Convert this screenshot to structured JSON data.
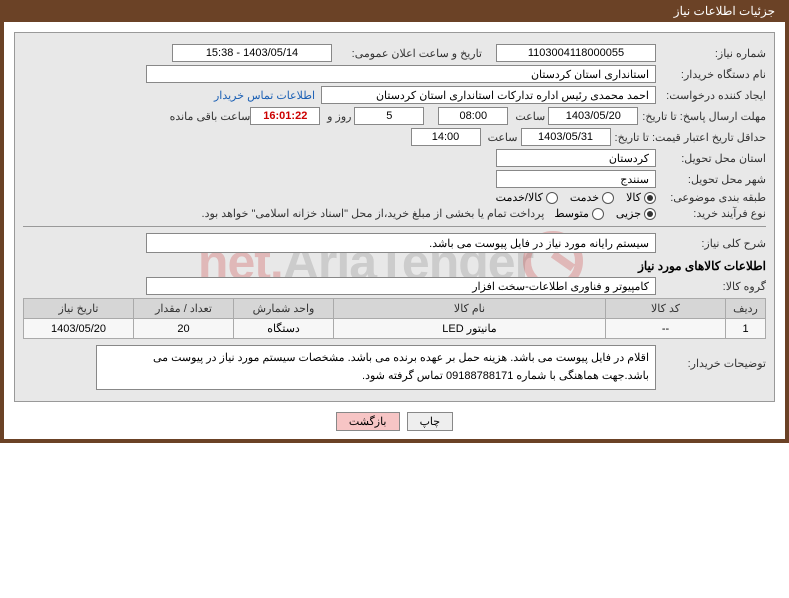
{
  "window_title": "جزئیات اطلاعات نیاز",
  "fields": {
    "need_no_label": "شماره نیاز:",
    "need_no": "1103004118000055",
    "announce_datetime_label": "تاریخ و ساعت اعلان عمومی:",
    "announce_datetime": "1403/05/14 - 15:38",
    "buyer_org_label": "نام دستگاه خریدار:",
    "buyer_org": "استانداری استان کردستان",
    "requester_label": "ایجاد کننده درخواست:",
    "requester": "احمد محمدی رئیس اداره تدارکات استانداری استان کردستان",
    "contact_link": "اطلاعات تماس خریدار",
    "deadline_send_label": "مهلت ارسال پاسخ: تا تاریخ:",
    "deadline_send_date": "1403/05/20",
    "time_label": "ساعت",
    "deadline_send_time": "08:00",
    "days_left": "5",
    "days_and": "روز و",
    "countdown": "16:01:22",
    "remain_label": "ساعت باقی مانده",
    "validity_label": "حداقل تاریخ اعتبار قیمت: تا تاریخ:",
    "validity_date": "1403/05/31",
    "validity_time": "14:00",
    "delivery_province_label": "استان محل تحویل:",
    "delivery_province": "کردستان",
    "delivery_city_label": "شهر محل تحویل:",
    "delivery_city": "سنندج",
    "category_label": "طبقه بندی موضوعی:",
    "cat_goods": "کالا",
    "cat_service": "خدمت",
    "cat_goods_service": "کالا/خدمت",
    "buy_type_label": "نوع فرآیند خرید:",
    "buy_partial": "جزیی",
    "buy_medium": "متوسط",
    "buy_note": "پرداخت تمام یا بخشی از مبلغ خرید،از محل \"اسناد خزانه اسلامی\" خواهد بود.",
    "summary_label": "شرح کلی نیاز:",
    "summary": "سیستم رایانه مورد نیاز در فایل پیوست می باشد.",
    "goods_section": "اطلاعات کالاهای مورد نیاز",
    "goods_group_label": "گروه کالا:",
    "goods_group": "کامپیوتر و فناوری اطلاعات-سخت افزار",
    "buyer_desc_label": "توضیحات خریدار:",
    "buyer_desc": "اقلام در فایل پیوست می باشد. هزینه حمل بر عهده برنده می باشد. مشخصات سیستم مورد نیاز در پیوست می باشد.جهت هماهنگی با شماره 09188788171 تماس گرفته شود."
  },
  "table": {
    "columns": [
      "ردیف",
      "کد کالا",
      "نام کالا",
      "واحد شمارش",
      "تعداد / مقدار",
      "تاریخ نیاز"
    ],
    "rows": [
      [
        "1",
        "--",
        "مانیتور LED",
        "دستگاه",
        "20",
        "1403/05/20"
      ]
    ],
    "col_widths": [
      "40px",
      "120px",
      "auto",
      "100px",
      "100px",
      "110px"
    ]
  },
  "buttons": {
    "print": "چاپ",
    "back": "بازگشت"
  },
  "watermark": {
    "text1": "AriaTender",
    "text2": ".net"
  }
}
